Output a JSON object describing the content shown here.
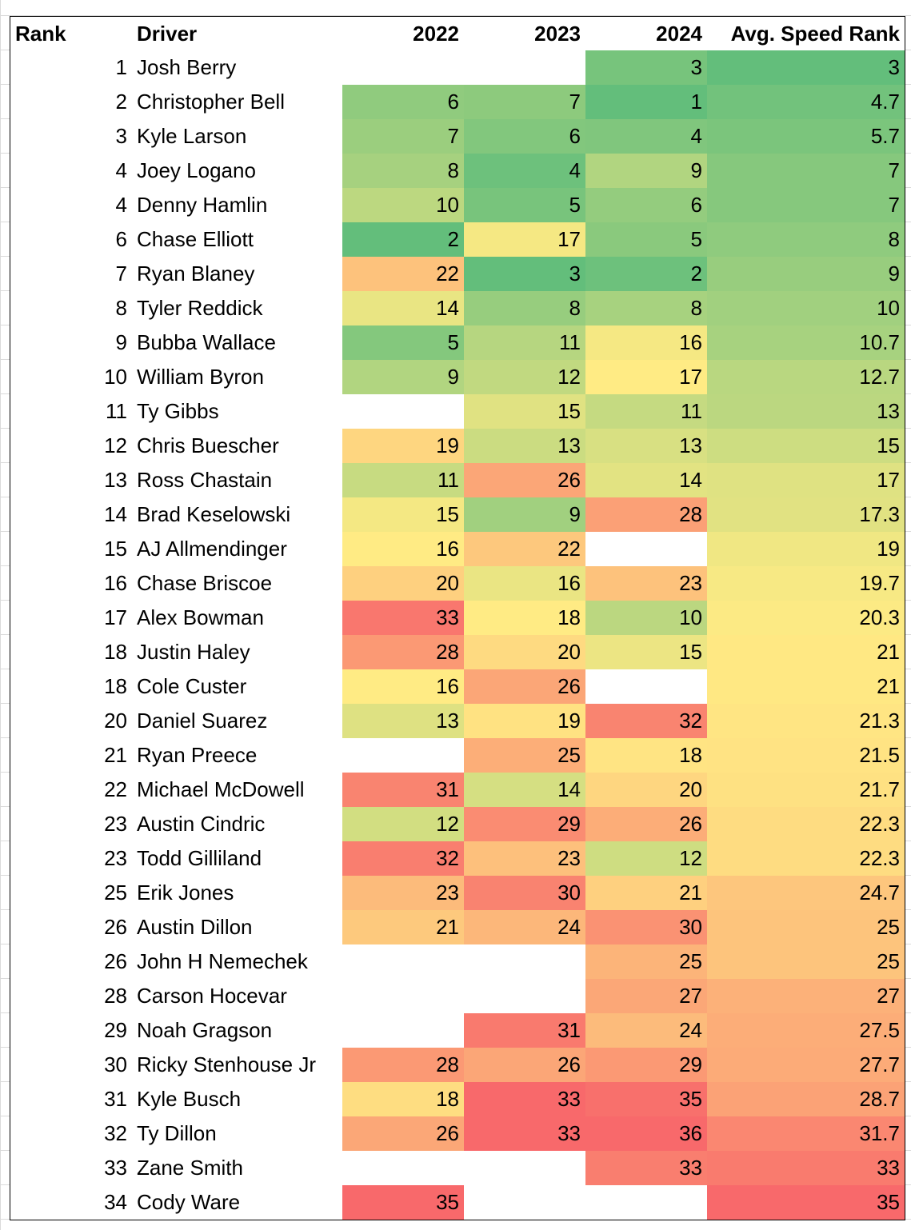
{
  "table": {
    "header": [
      "Rank",
      "Driver",
      "2022",
      "2023",
      "2024",
      "Avg. Speed Rank"
    ],
    "rows": [
      [
        1,
        "Josh Berry",
        null,
        null,
        3,
        3
      ],
      [
        2,
        "Christopher Bell",
        6,
        7,
        1,
        4.7
      ],
      [
        3,
        "Kyle Larson",
        7,
        6,
        4,
        5.7
      ],
      [
        4,
        "Joey Logano",
        8,
        4,
        9,
        7
      ],
      [
        4,
        "Denny Hamlin",
        10,
        5,
        6,
        7
      ],
      [
        6,
        "Chase Elliott",
        2,
        17,
        5,
        8
      ],
      [
        7,
        "Ryan Blaney",
        22,
        3,
        2,
        9
      ],
      [
        8,
        "Tyler Reddick",
        14,
        8,
        8,
        10
      ],
      [
        9,
        "Bubba Wallace",
        5,
        11,
        16,
        10.7
      ],
      [
        10,
        "William Byron",
        9,
        12,
        17,
        12.7
      ],
      [
        11,
        "Ty Gibbs",
        null,
        15,
        11,
        13
      ],
      [
        12,
        "Chris Buescher",
        19,
        13,
        13,
        15
      ],
      [
        13,
        "Ross Chastain",
        11,
        26,
        14,
        17
      ],
      [
        14,
        "Brad Keselowski",
        15,
        9,
        28,
        17.3
      ],
      [
        15,
        "AJ Allmendinger",
        16,
        22,
        null,
        19
      ],
      [
        16,
        "Chase Briscoe",
        20,
        16,
        23,
        19.7
      ],
      [
        17,
        "Alex Bowman",
        33,
        18,
        10,
        20.3
      ],
      [
        18,
        "Justin Haley",
        28,
        20,
        15,
        21
      ],
      [
        18,
        "Cole Custer",
        16,
        26,
        null,
        21
      ],
      [
        20,
        "Daniel Suarez",
        13,
        19,
        32,
        21.3
      ],
      [
        21,
        "Ryan Preece",
        null,
        25,
        18,
        21.5
      ],
      [
        22,
        "Michael McDowell",
        31,
        14,
        20,
        21.7
      ],
      [
        23,
        "Austin Cindric",
        12,
        29,
        26,
        22.3
      ],
      [
        23,
        "Todd Gilliland",
        32,
        23,
        12,
        22.3
      ],
      [
        25,
        "Erik Jones",
        23,
        30,
        21,
        24.7
      ],
      [
        26,
        "Austin Dillon",
        21,
        24,
        30,
        25
      ],
      [
        26,
        "John H Nemechek",
        null,
        null,
        25,
        25
      ],
      [
        28,
        "Carson Hocevar",
        null,
        null,
        27,
        27
      ],
      [
        29,
        "Noah Gragson",
        null,
        31,
        24,
        27.5
      ],
      [
        30,
        "Ricky Stenhouse Jr",
        28,
        26,
        29,
        27.7
      ],
      [
        31,
        "Kyle Busch",
        18,
        33,
        35,
        28.7
      ],
      [
        32,
        "Ty Dillon",
        26,
        33,
        36,
        31.7
      ],
      [
        33,
        "Zane Smith",
        null,
        null,
        33,
        33
      ],
      [
        34,
        "Cody Ware",
        35,
        null,
        null,
        35
      ]
    ]
  },
  "color_scale": {
    "low": "#63be7b",
    "mid": "#ffeb84",
    "high": "#f8696b"
  }
}
